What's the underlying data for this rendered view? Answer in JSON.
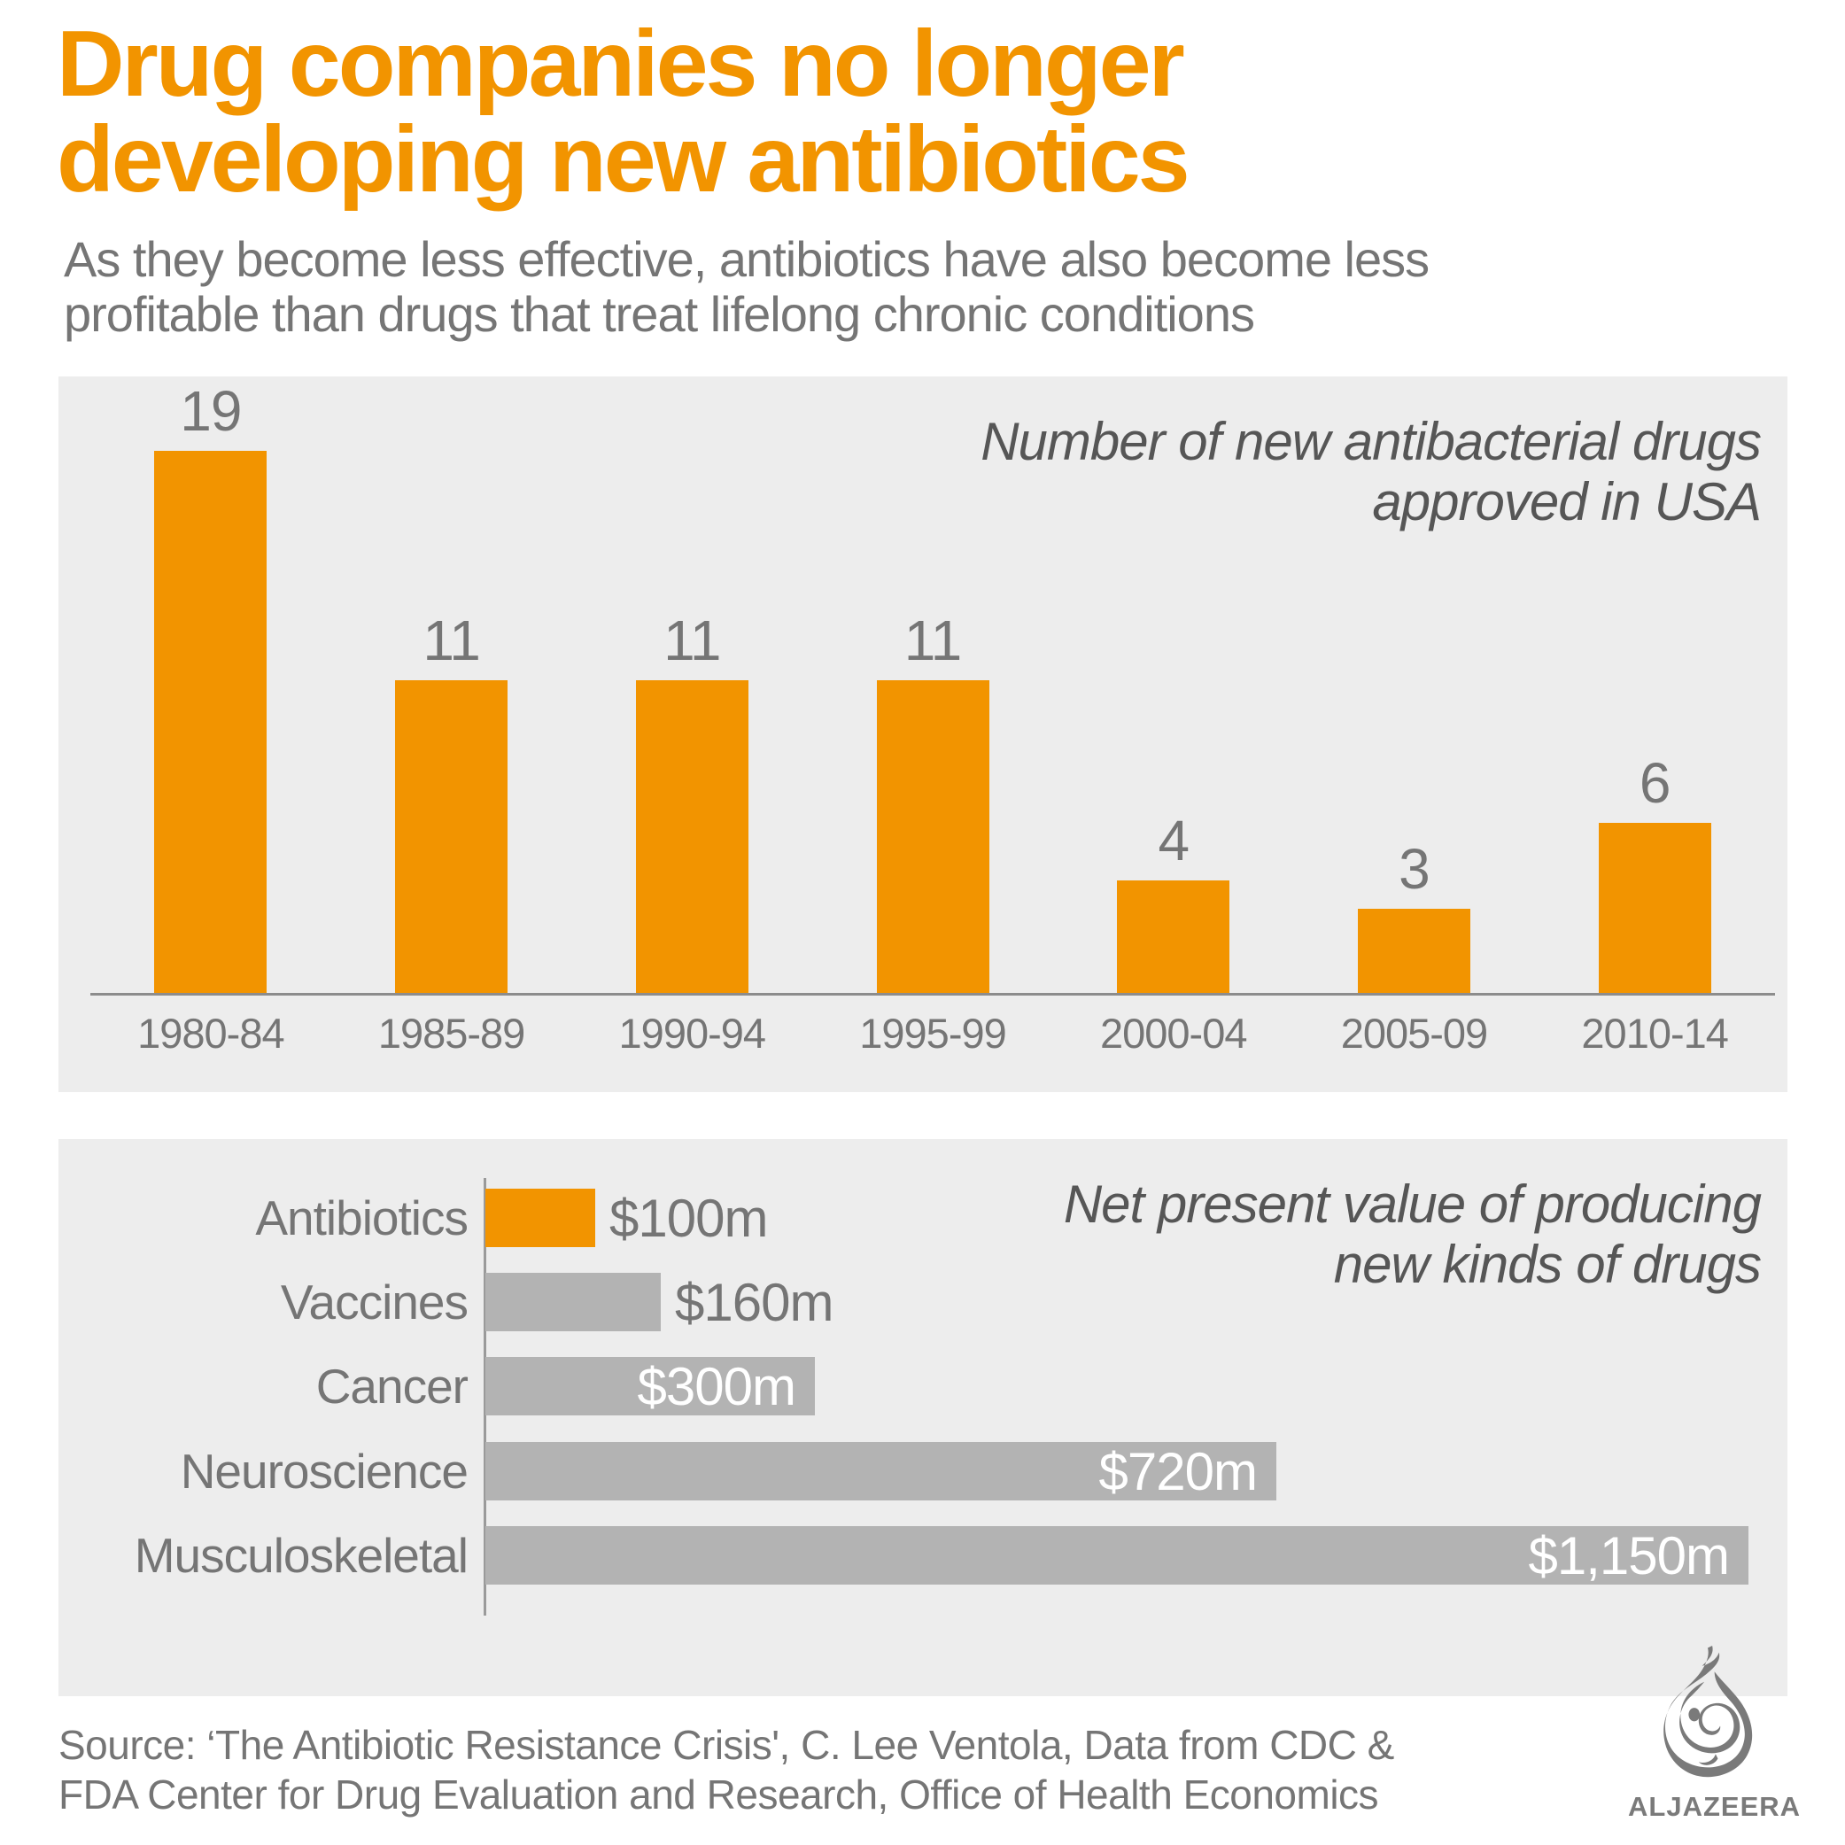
{
  "header": {
    "title_line1": "Drug companies no longer",
    "title_line2": "developing new antibiotics",
    "subtitle_line1": "As they become less effective, antibiotics have also become less",
    "subtitle_line2": "profitable than drugs that treat lifelong chronic conditions"
  },
  "colors": {
    "orange": "#F29400",
    "bar_gray": "#B3B3B3",
    "panel_bg": "#EDEDED",
    "text_gray": "#757575",
    "dark_gray": "#565656",
    "axis_gray": "#8C8C8C",
    "logo_gray": "#7A7A7A",
    "inside_label_white": "#FFFFFF"
  },
  "chart_data": [
    {
      "type": "bar",
      "orientation": "vertical",
      "title": "Number of new antibacterial drugs approved in USA",
      "title_lines": [
        "Number of new antibacterial drugs",
        "approved in USA"
      ],
      "categories": [
        "1980-84",
        "1985-89",
        "1990-94",
        "1995-99",
        "2000-04",
        "2005-09",
        "2010-14"
      ],
      "values": [
        19,
        11,
        11,
        11,
        4,
        3,
        6
      ],
      "ylim": [
        0,
        19
      ],
      "grid": false,
      "bar_color": "orange",
      "value_labels": [
        "19",
        "11",
        "11",
        "11",
        "4",
        "3",
        "6"
      ],
      "legend": "none"
    },
    {
      "type": "bar",
      "orientation": "horizontal",
      "title": "Net present value of producing new kinds of drugs",
      "title_lines": [
        "Net present value of producing",
        "new kinds of drugs"
      ],
      "categories": [
        "Antibiotics",
        "Vaccines",
        "Cancer",
        "Neuroscience",
        "Musculoskeletal"
      ],
      "values": [
        100,
        160,
        300,
        720,
        1150
      ],
      "value_labels": [
        "$100m",
        "$160m",
        "$300m",
        "$720m",
        "$1,150m"
      ],
      "label_placement": [
        "outside",
        "outside",
        "inside",
        "inside",
        "inside"
      ],
      "highlight_category": "Antibiotics",
      "highlight_index": 0,
      "xlim": [
        0,
        1190
      ],
      "grid": false,
      "legend": "none"
    }
  ],
  "footer": {
    "source_line1": "Source: ‘The Antibiotic Resistance Crisis', C. Lee Ventola, Data from CDC &",
    "source_line2": "FDA Center for Drug Evaluation and Research, Office of Health Economics",
    "brand": "ALJAZEERA"
  }
}
